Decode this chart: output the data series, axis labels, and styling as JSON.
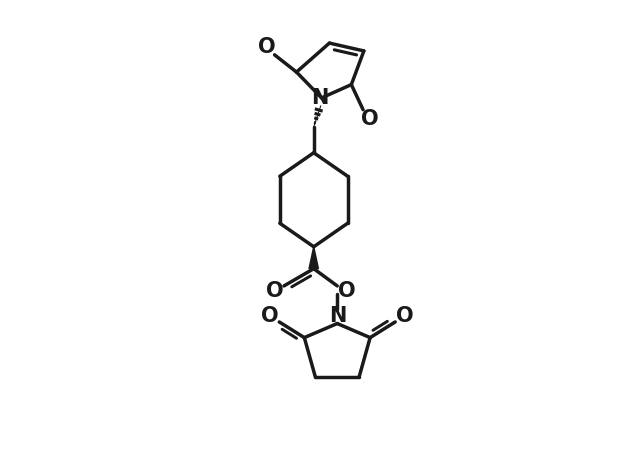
{
  "background_color": "#ffffff",
  "line_color": "#1a1a1a",
  "line_width": 2.5,
  "font_size": 15,
  "figsize": [
    6.4,
    4.7
  ],
  "dpi": 100,
  "xlim": [
    -1.6,
    1.6
  ],
  "ylim": [
    -3.2,
    2.8
  ]
}
